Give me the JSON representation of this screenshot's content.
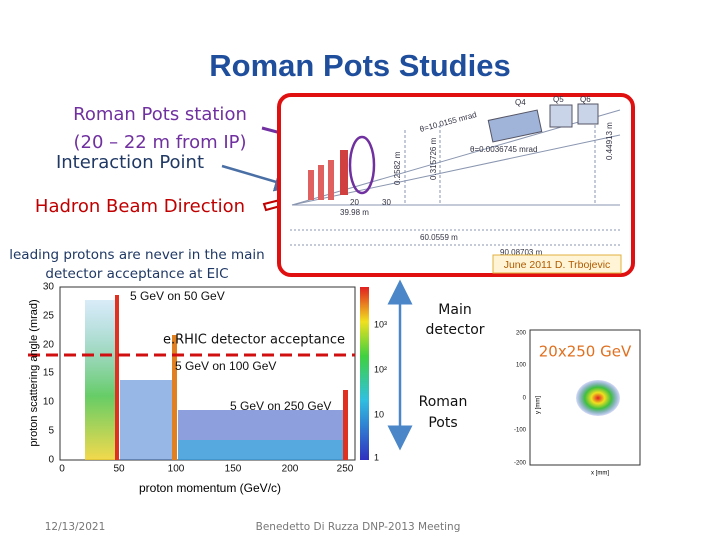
{
  "title": "Roman Pots Studies",
  "callouts": {
    "station": [
      "Roman Pots station",
      "(20 – 22 m  from IP)"
    ],
    "interaction_point": "Interaction Point",
    "beam_direction": "Hadron Beam Direction",
    "note": [
      "leading protons are never in the main",
      "detector acceptance at EIC"
    ]
  },
  "beamline": {
    "credit": "June 2011  D. Trbojevic",
    "magnets": [
      "Q4",
      "Q5",
      "Q6"
    ],
    "angles": [
      "θ=10.0155 mrad",
      "θ=0.0036745 mrad"
    ],
    "distances": [
      "39.98 m",
      "60.0559 m",
      "90.08703 m"
    ],
    "offsets": [
      "0.2582 m",
      "0.315726 m",
      "0.44913 m"
    ],
    "scale": [
      "20",
      "30"
    ]
  },
  "acceptance_plot": {
    "labels": [
      "5 GeV on 50 GeV",
      "e.RHIC detector acceptance",
      "5 GeV on 100 GeV",
      "5 GeV on 250 GeV"
    ],
    "y_axis": "proton scattering angle (mrad)",
    "x_axis": "proton momentum (GeV/c)",
    "yticks": [
      "0",
      "5",
      "10",
      "15",
      "20",
      "25",
      "30"
    ],
    "xticks": [
      "0",
      "50",
      "100",
      "150",
      "200",
      "250"
    ],
    "color_ticks": [
      "10³",
      "10²",
      "10",
      "1"
    ]
  },
  "detector_arrow": {
    "top": [
      "Main",
      "detector"
    ],
    "bottom": [
      "Roman",
      "Pots"
    ]
  },
  "hit_plot": {
    "title": "20x250 GeV",
    "yticks": [
      "200",
      "100",
      "0",
      "-100",
      "-200"
    ],
    "x_axis": "x [mm]",
    "y_axis": "y [mm]"
  },
  "footer": {
    "date": "12/13/2021",
    "author": "Benedetto Di Ruzza DNP-2013 Meeting"
  }
}
